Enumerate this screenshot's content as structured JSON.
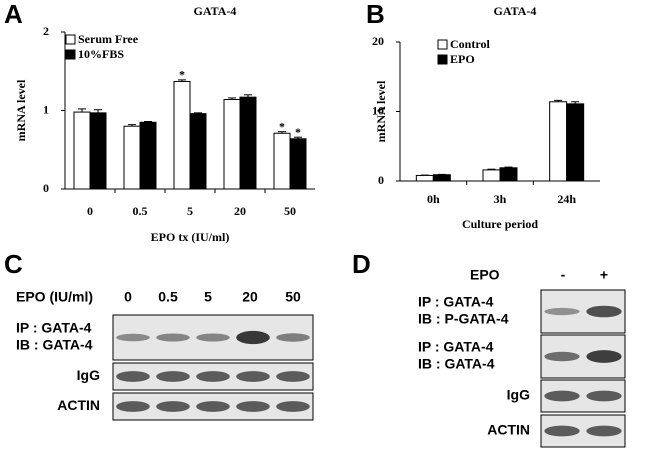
{
  "panels": {
    "a": "A",
    "b": "B",
    "c": "C",
    "d": "D"
  },
  "chart_data": [
    {
      "type": "bar",
      "title": "GATA-4",
      "y_label": "mRNA level",
      "x_label": "EPO tx (IU/ml)",
      "categories": [
        "0",
        "0.5",
        "5",
        "20",
        "50"
      ],
      "series": [
        {
          "name": "Serum Free",
          "color": "#ffffff",
          "values": [
            0.98,
            0.8,
            1.37,
            1.14,
            0.71
          ],
          "errors": [
            0.04,
            0.02,
            0.02,
            0.02,
            0.02
          ]
        },
        {
          "name": "10%FBS",
          "color": "#000000",
          "values": [
            0.97,
            0.85,
            0.96,
            1.17,
            0.64
          ],
          "errors": [
            0.04,
            0.01,
            0.01,
            0.03,
            0.02
          ]
        }
      ],
      "annotations": [
        {
          "text": "*",
          "series": 0,
          "index": 2
        },
        {
          "text": "*",
          "series": 0,
          "index": 4
        },
        {
          "text": "*",
          "series": 1,
          "index": 4
        }
      ],
      "ylim": [
        0,
        2
      ],
      "yticks": [
        0,
        1,
        2
      ],
      "grid": false,
      "legend": "top-left"
    },
    {
      "type": "bar",
      "title": "GATA-4",
      "y_label": "mRNA level",
      "x_label": "Culture period",
      "categories": [
        "0h",
        "3h",
        "24h"
      ],
      "series": [
        {
          "name": "Control",
          "color": "#ffffff",
          "values": [
            0.8,
            1.6,
            11.4
          ],
          "errors": [
            0.05,
            0.1,
            0.2
          ]
        },
        {
          "name": "EPO",
          "color": "#000000",
          "values": [
            0.9,
            1.9,
            11.1
          ],
          "errors": [
            0.05,
            0.1,
            0.3
          ]
        }
      ],
      "annotations": [],
      "ylim": [
        0,
        20
      ],
      "yticks": [
        0,
        10,
        20
      ],
      "grid": false,
      "legend": "top-left"
    }
  ],
  "blot_c": {
    "header": "EPO (IU/ml)",
    "lanes": [
      "0",
      "0.5",
      "5",
      "20",
      "50"
    ],
    "rows": [
      [
        "IP : GATA-4",
        "IB : GATA-4"
      ],
      [
        "IgG"
      ],
      [
        "ACTIN"
      ]
    ]
  },
  "blot_d": {
    "header": "EPO",
    "lanes": [
      "-",
      "+"
    ],
    "rows": [
      [
        "IP : GATA-4",
        "IB : P-GATA-4"
      ],
      [
        "IP : GATA-4",
        "IB : GATA-4"
      ],
      [
        "IgG"
      ],
      [
        "ACTIN"
      ]
    ]
  }
}
